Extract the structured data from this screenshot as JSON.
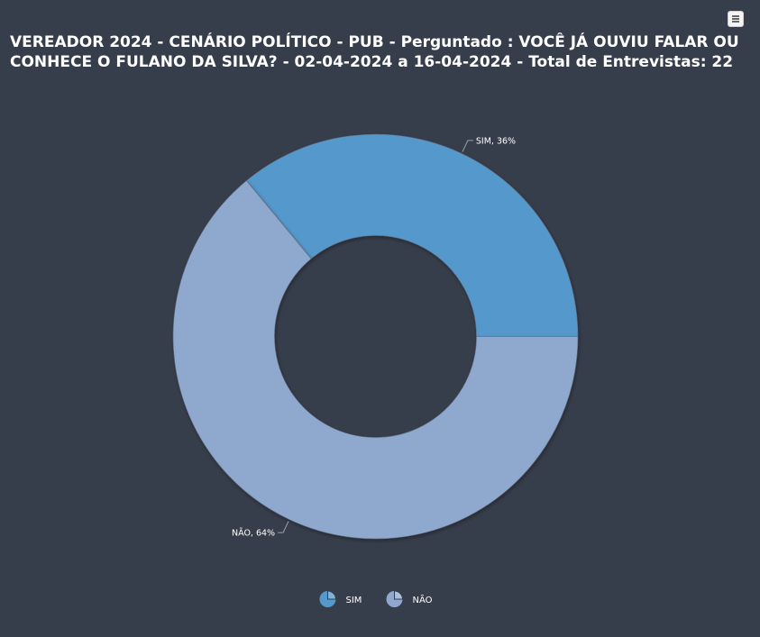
{
  "chart_data": {
    "type": "pie",
    "title": "VEREADOR 2024 - CENÁRIO POLÍTICO - PUB - Perguntado : VOCÊ JÁ OUVIU FALAR OU CONHECE O FULANO DA SILVA? - 02-04-2024 a 16-04-2024 - Total de Entrevistas: 22",
    "donut": true,
    "legend_position": "bottom",
    "slices": [
      {
        "label": "SIM",
        "value": 36,
        "data_label": "SIM, 36%",
        "color": "#5499cc"
      },
      {
        "label": "NÃO",
        "value": 64,
        "data_label": "NÃO, 64%",
        "color": "#8fa8ce"
      }
    ]
  },
  "colors": {
    "background": "#373e4b",
    "text": "#ffffff",
    "connector": "#9aa0aa"
  },
  "icons": {
    "menu": "hamburger-menu-icon",
    "legend_symbol": "pie-chart-icon"
  }
}
